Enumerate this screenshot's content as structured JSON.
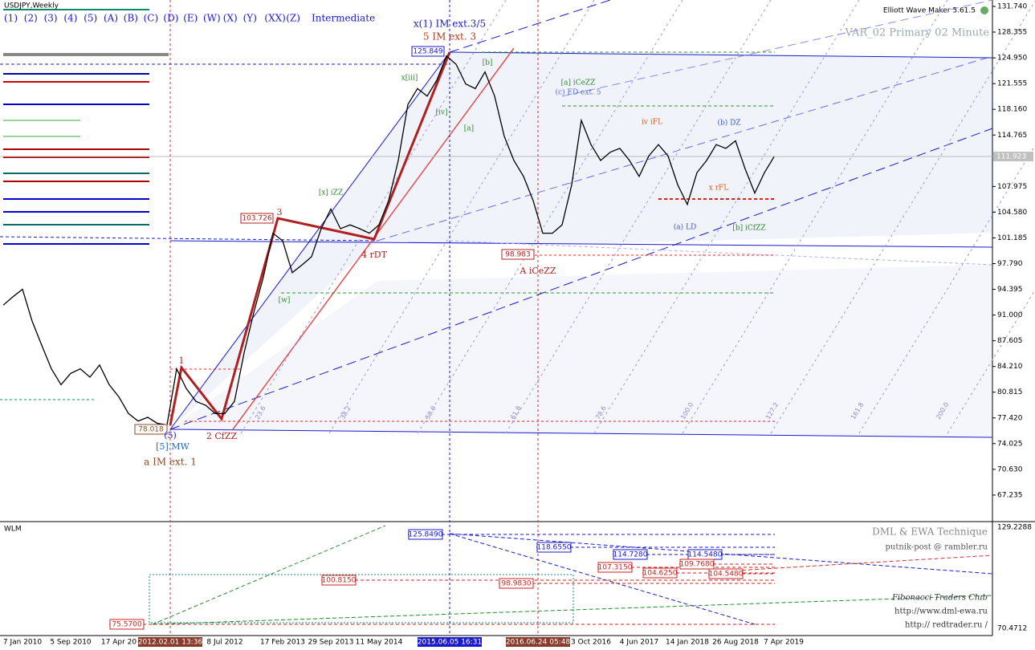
{
  "chart_data": {
    "type": "line",
    "title": "USDJPY,Weekly",
    "color": "#000000",
    "categories": [
      null,
      null,
      "7 Jan 2010",
      null,
      null,
      null,
      null,
      "5 Sep 2010",
      null,
      null,
      null,
      null,
      "17 Apr 20",
      null,
      null,
      null,
      null,
      null,
      null,
      null,
      null,
      null,
      null,
      "8 Jul 2012",
      null,
      null,
      null,
      null,
      null,
      "17 Feb 2013",
      null,
      null,
      null,
      null,
      "29 Sep 2013",
      null,
      null,
      null,
      null,
      "11 May 2014",
      null,
      null,
      null,
      null,
      null,
      null,
      null,
      null,
      null,
      null,
      null,
      null,
      null,
      null,
      null,
      null,
      null,
      null,
      null,
      null,
      null,
      "3 Oct 2016",
      null,
      null,
      null,
      null,
      "4 Jun 2017",
      null,
      null,
      null,
      null,
      "14 Jan 2018",
      null,
      null,
      null,
      null,
      "26 Aug 2018",
      null,
      null,
      null,
      null,
      "7 Apr 2019"
    ],
    "values": [
      92.3,
      93.4,
      94.4,
      90.2,
      87.0,
      83.9,
      81.8,
      83.3,
      83.9,
      82.8,
      84.4,
      81.8,
      80.2,
      78.0,
      77.0,
      77.5,
      76.7,
      76.5,
      83.9,
      81.3,
      79.6,
      79.1,
      78.0,
      78.0,
      79.6,
      86.0,
      91.3,
      96.0,
      101.8,
      100.8,
      96.6,
      97.6,
      98.7,
      102.4,
      105.0,
      102.4,
      102.9,
      102.4,
      101.8,
      102.9,
      106.1,
      111.4,
      118.8,
      120.9,
      119.9,
      122.0,
      125.2,
      124.1,
      121.5,
      120.9,
      123.1,
      119.9,
      114.6,
      111.4,
      109.3,
      106.1,
      101.8,
      101.8,
      102.9,
      108.2,
      116.7,
      113.5,
      111.4,
      112.5,
      113.0,
      111.4,
      109.3,
      112.0,
      113.5,
      112.0,
      108.2,
      105.6,
      109.8,
      111.4,
      113.5,
      113.0,
      114.0,
      110.3,
      107.1,
      109.8,
      111.9,
      null
    ],
    "ylim": [
      63.73,
      132.59
    ],
    "yticks": [
      {
        "value": 131.74,
        "label": "131.740"
      },
      {
        "value": 128.355,
        "label": "128.355"
      },
      {
        "value": 124.95,
        "label": "124.950"
      },
      {
        "value": 121.555,
        "label": "121.555"
      },
      {
        "value": 118.16,
        "label": "118.160"
      },
      {
        "value": 114.765,
        "label": "114.765"
      },
      {
        "value": 107.975,
        "label": "107.975"
      },
      {
        "value": 104.58,
        "label": "104.580"
      },
      {
        "value": 101.185,
        "label": "101.185"
      },
      {
        "value": 97.79,
        "label": "97.790"
      },
      {
        "value": 94.395,
        "label": "94.395"
      },
      {
        "value": 91.0,
        "label": "91.000"
      },
      {
        "value": 87.605,
        "label": "87.605"
      },
      {
        "value": 84.21,
        "label": "84.210"
      },
      {
        "value": 80.815,
        "label": "80.815"
      },
      {
        "value": 77.42,
        "label": "77.420"
      },
      {
        "value": 74.025,
        "label": "74.025"
      },
      {
        "value": 70.63,
        "label": "70.630"
      },
      {
        "value": 67.235,
        "label": "67.235"
      }
    ],
    "last_price": 111.923,
    "x_markers": [
      "2012.02.01 13:36",
      "2015.06.05 16:31",
      "2016.06.24 05:48"
    ],
    "annotations": [
      "x(1) IM ext.3/5",
      "5 IM ext. 3",
      "125.849",
      "103.726",
      "98.983",
      "78.018",
      "3",
      "1",
      "2 CfZZ",
      "4 rDT",
      "A iCeZZ",
      "[5] MW",
      "a IM ext. 1",
      "[a] iCeZZ",
      "(c) ED ext. 5",
      "[x] iZZ",
      "x[iii]",
      "[iv]",
      "[b]",
      "[a]",
      "[w]",
      "(a) LD",
      "[b] iCfZZ",
      "iv iFL",
      "(b) DZ",
      "x rFL",
      "(5)"
    ],
    "fib_labels": [
      "23.6",
      "38.2",
      "50.0",
      "61.8",
      "78.6",
      "100.0",
      "127.2",
      "161.8",
      "200.0"
    ]
  },
  "toolbar": {
    "buttons": [
      "(1)",
      "(2)",
      "(3)",
      "(4)",
      "(5)",
      "(A)",
      "(B)",
      "(C)",
      "(D)",
      "(E)",
      "(W)",
      "(X)",
      "(Y)",
      "(XX)",
      "(Z)"
    ],
    "degree": "Intermediate"
  },
  "header": {
    "indicator": "Elliott Wave Maker 5.61.5",
    "template": "VAR_02 Primary 02 Minute"
  },
  "subwindow": {
    "title": "WLM",
    "scale_labels": [
      "129.2288",
      "70.4712"
    ],
    "texts": [
      "DML & EWA Technique",
      "putnik-post @ rambler.ru",
      "Fibonacci     Traders     Club",
      "http://www.dml-ewa.ru",
      "http:// redtrader.ru /"
    ],
    "price_boxes": [
      "125.8490",
      "118.6550",
      "114.7280",
      "114.5480",
      "107.3150",
      "109.7680",
      "104.6250",
      "104.5480",
      "100.8150",
      "98.9830",
      "75.5700"
    ]
  }
}
